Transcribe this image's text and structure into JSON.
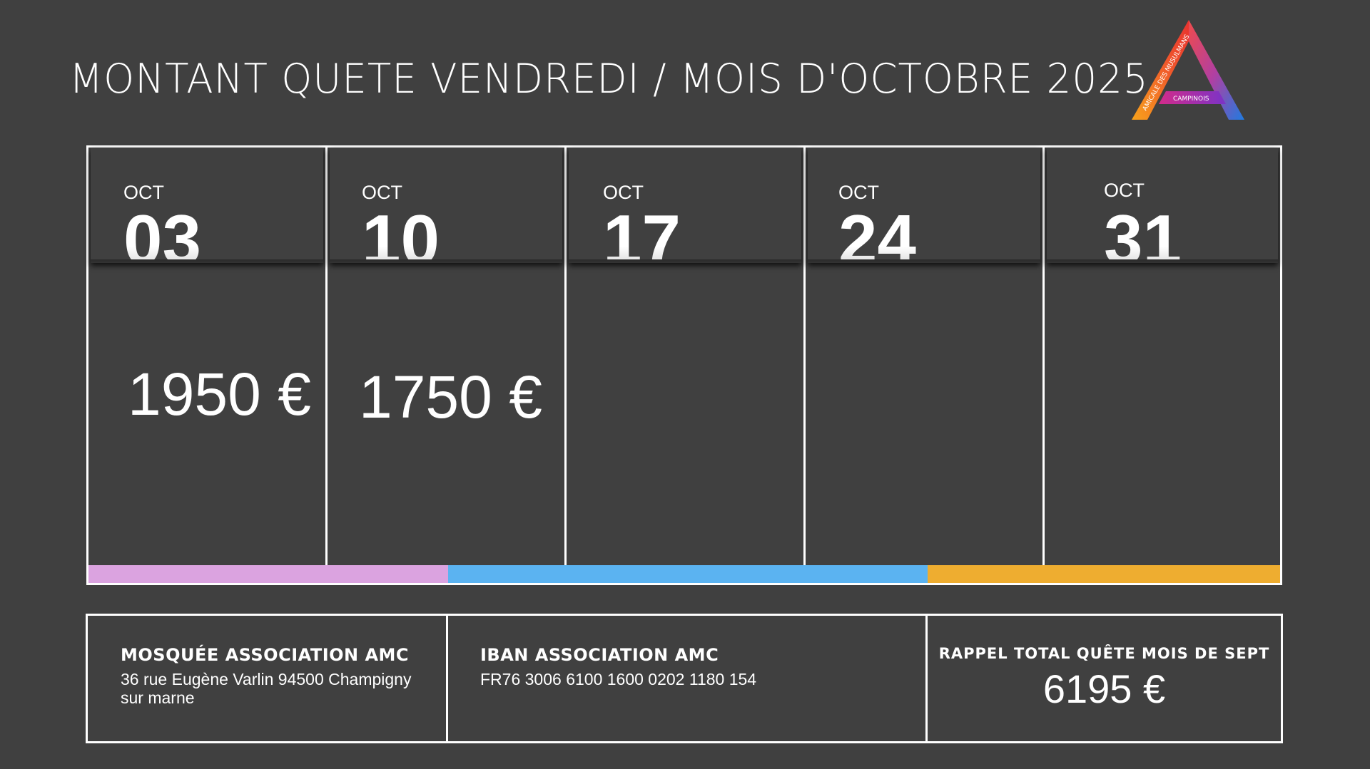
{
  "title": "MONTANT QUETE VENDREDI / MOIS D'OCTOBRE 2025",
  "logo": {
    "text_top": "AMICALE DES MUSULMANS",
    "text_bottom": "CAMPINOIS"
  },
  "days": [
    {
      "month": "OCT",
      "day": "03",
      "amount": "1950 €"
    },
    {
      "month": "OCT",
      "day": "10",
      "amount": "1750 €"
    },
    {
      "month": "OCT",
      "day": "17",
      "amount": ""
    },
    {
      "month": "OCT",
      "day": "24",
      "amount": ""
    },
    {
      "month": "OCT",
      "day": "31",
      "amount": ""
    }
  ],
  "colors": {
    "background": "#404040",
    "bar_pink": "#dba3e0",
    "bar_blue": "#5bb3f1",
    "bar_orange": "#eead30"
  },
  "info": {
    "mosque_title": "MOSQUÉE ASSOCIATION AMC",
    "mosque_address": "36 rue Eugène Varlin 94500 Champigny sur marne",
    "iban_title": "IBAN ASSOCIATION AMC",
    "iban_value": "FR76 3006 6100 1600 0202 1180 154",
    "total_title": "RAPPEL TOTAL QUÊTE MOIS DE SEPT",
    "total_value": "6195 €"
  }
}
